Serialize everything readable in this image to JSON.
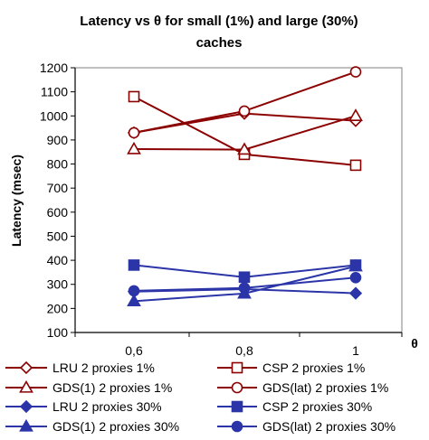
{
  "chart_data": {
    "type": "line",
    "title_line1": "Latency vs θ for small (1%) and large (30%)",
    "title_line2": "caches",
    "xlabel": "θ",
    "ylabel": "Latency (msec)",
    "x": [
      "0,6",
      "0,8",
      "1"
    ],
    "ylim": [
      100,
      1200
    ],
    "yticks": [
      100,
      200,
      300,
      400,
      500,
      600,
      700,
      800,
      900,
      1000,
      1100,
      1200
    ],
    "grid": false,
    "legend_position": "bottom",
    "series": [
      {
        "name": "LRU 2 proxies 1%",
        "values": [
          930,
          1010,
          980
        ],
        "color": "#8b0000",
        "marker": "diamond",
        "filled": false
      },
      {
        "name": "CSP 2 proxies 1%",
        "values": [
          1080,
          840,
          795
        ],
        "color": "#8b0000",
        "marker": "square",
        "filled": false
      },
      {
        "name": "GDS(1) 2 proxies 1%",
        "values": [
          862,
          860,
          1000
        ],
        "color": "#8b0000",
        "marker": "triangle",
        "filled": false
      },
      {
        "name": "GDS(lat) 2 proxies 1%",
        "values": [
          930,
          1020,
          1183
        ],
        "color": "#8b0000",
        "marker": "circle",
        "filled": false
      },
      {
        "name": "LRU 2 proxies 30%",
        "values": [
          270,
          280,
          263
        ],
        "color": "#2b35a8",
        "marker": "diamond",
        "filled": true
      },
      {
        "name": "CSP 2 proxies 30%",
        "values": [
          380,
          330,
          380
        ],
        "color": "#2b35a8",
        "marker": "square",
        "filled": true
      },
      {
        "name": "GDS(1) 2 proxies 30%",
        "values": [
          230,
          262,
          375
        ],
        "color": "#2b35a8",
        "marker": "triangle",
        "filled": true
      },
      {
        "name": "GDS(lat) 2 proxies 30%",
        "values": [
          273,
          285,
          328
        ],
        "color": "#2b35a8",
        "marker": "circle",
        "filled": true
      }
    ]
  }
}
